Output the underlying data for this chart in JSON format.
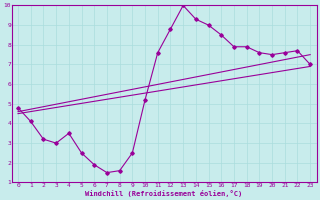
{
  "xlabel": "Windchill (Refroidissement éolien,°C)",
  "background_color": "#c8ecec",
  "line_color": "#990099",
  "spine_color": "#660066",
  "xlim": [
    -0.5,
    23.5
  ],
  "ylim": [
    1,
    10
  ],
  "xticks": [
    0,
    1,
    2,
    3,
    4,
    5,
    6,
    7,
    8,
    9,
    10,
    11,
    12,
    13,
    14,
    15,
    16,
    17,
    18,
    19,
    20,
    21,
    22,
    23
  ],
  "yticks": [
    1,
    2,
    3,
    4,
    5,
    6,
    7,
    8,
    9,
    10
  ],
  "grid_color": "#aadddd",
  "series1_x": [
    0,
    1,
    2,
    3,
    4,
    5,
    6,
    7,
    8,
    9,
    10,
    11,
    12,
    13,
    14,
    15,
    16,
    17,
    18,
    19,
    20,
    21,
    22,
    23
  ],
  "series1_y": [
    4.8,
    4.1,
    3.2,
    3.0,
    3.5,
    2.5,
    1.9,
    1.5,
    1.6,
    2.5,
    5.2,
    7.6,
    8.8,
    10.0,
    9.3,
    9.0,
    8.5,
    7.9,
    7.9,
    7.6,
    7.5,
    7.6,
    7.7,
    7.0
  ],
  "series2_x": [
    0,
    23
  ],
  "series2_y": [
    4.5,
    6.9
  ],
  "series3_x": [
    0,
    23
  ],
  "series3_y": [
    4.6,
    7.5
  ]
}
